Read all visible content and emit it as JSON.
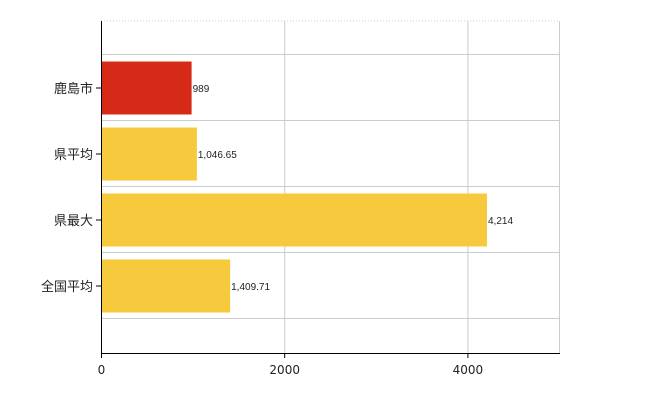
{
  "chart_data": {
    "type": "bar",
    "orientation": "horizontal",
    "categories": [
      "鹿島市",
      "県平均",
      "県最大",
      "全国平均"
    ],
    "values": [
      989,
      1046.65,
      4214,
      1409.71
    ],
    "value_labels": [
      "989",
      "1,046.65",
      "4,214",
      "1,409.71"
    ],
    "highlight_index": 0,
    "colors": {
      "highlight": "#d42a17",
      "default": "#f7c93c",
      "grid": "#cccccc",
      "axis": "#000000"
    },
    "xlim": [
      0,
      5000
    ],
    "xticks": [
      0,
      2000,
      4000
    ],
    "xtick_labels": [
      "0",
      "2000",
      "4000"
    ],
    "grid": true,
    "title": "",
    "xlabel": "",
    "ylabel": ""
  }
}
